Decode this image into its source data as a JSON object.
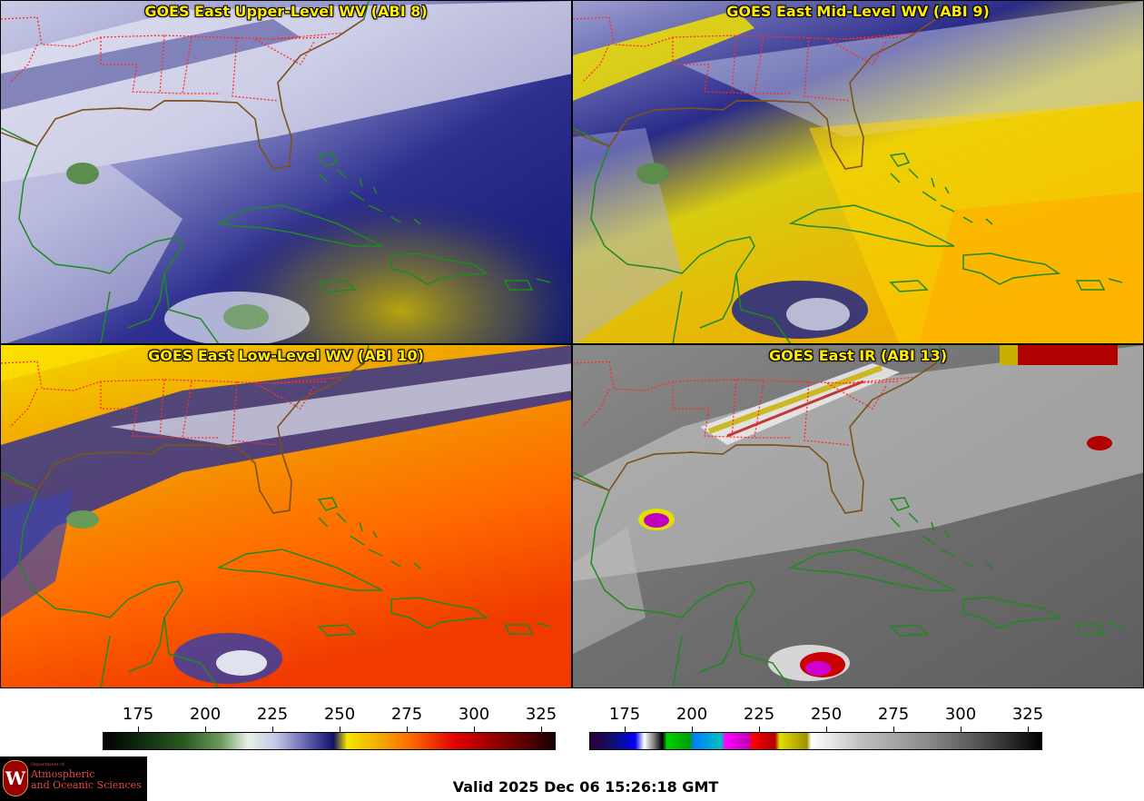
{
  "panels": [
    {
      "title": "GOES East Upper-Level WV (ABI 8)"
    },
    {
      "title": "GOES East Mid-Level WV (ABI 9)"
    },
    {
      "title": "GOES East Low-Level WV (ABI 10)"
    },
    {
      "title": "GOES East IR (ABI 13)"
    }
  ],
  "colorbar_wv": {
    "ticks": [
      "175",
      "200",
      "225",
      "250",
      "275",
      "300",
      "325"
    ]
  },
  "colorbar_ir": {
    "ticks": [
      "175",
      "200",
      "225",
      "250",
      "275",
      "300",
      "325"
    ]
  },
  "logo": {
    "line1": "Department of",
    "line2": "Atmospheric",
    "line3": "and Oceanic Sciences",
    "seal": "W"
  },
  "valid_time": "Valid 2025 Dec 06 15:26:18 GMT",
  "colors": {
    "title_text": "#ffea00",
    "state_borders": "#ff2020",
    "coastlines": "#1f8a1f"
  }
}
